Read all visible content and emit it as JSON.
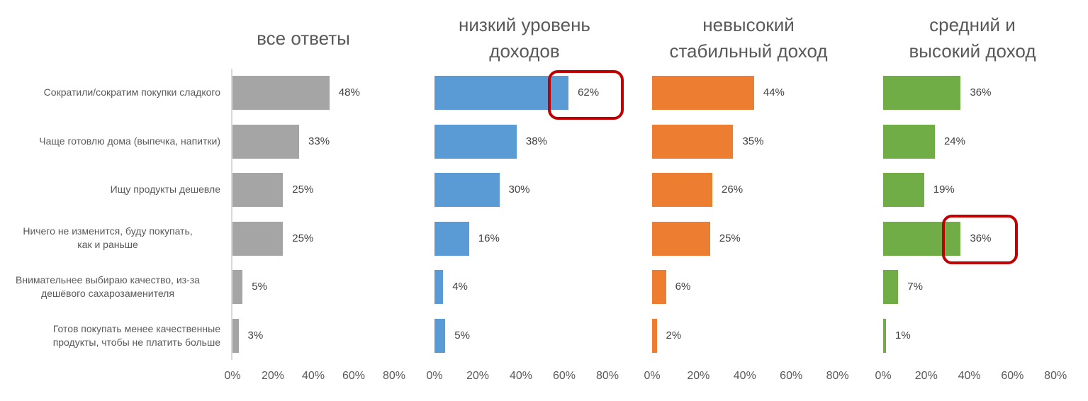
{
  "categories": [
    [
      "Сократили/сократим покупки сладкого"
    ],
    [
      "Чаще готовлю дома (выпечка, напитки)"
    ],
    [
      "Ищу продукты дешевле"
    ],
    [
      "Ничего не изменится, буду покупать,",
      "как и раньше"
    ],
    [
      "Внимательнее выбираю качество, из-за",
      "дешёвого сахарозаменителя"
    ],
    [
      "Готов покупать менее качественные",
      "продукты, чтобы не платить больше"
    ]
  ],
  "panels": [
    {
      "title": [
        "все ответы"
      ],
      "color": "#a5a5a5",
      "labels": [
        "48%",
        "33%",
        "25%",
        "25%",
        "5%",
        "3%"
      ]
    },
    {
      "title": [
        "низкий уровень",
        "доходов"
      ],
      "color": "#5b9bd5",
      "labels": [
        "62%",
        "38%",
        "30%",
        "16%",
        "4%",
        "5%"
      ]
    },
    {
      "title": [
        "невысокий",
        "стабильный доход"
      ],
      "color": "#ed7d31",
      "labels": [
        "44%",
        "35%",
        "26%",
        "25%",
        "6%",
        "2%"
      ]
    },
    {
      "title": [
        "средний и",
        "высокий доход"
      ],
      "color": "#70ad47",
      "labels": [
        "36%",
        "24%",
        "19%",
        "36%",
        "7%",
        "1%"
      ]
    }
  ],
  "x_ticks": [
    "0%",
    "20%",
    "40%",
    "60%",
    "80%"
  ],
  "highlight_color": "#c00000",
  "chart_data": [
    {
      "type": "bar",
      "orientation": "horizontal",
      "title": "все ответы",
      "categories": [
        "Сократили/сократим покупки сладкого",
        "Чаще готовлю дома (выпечка, напитки)",
        "Ищу продукты дешевле",
        "Ничего не изменится, буду покупать, как и раньше",
        "Внимательнее выбираю качество, из-за дешёвого сахарозаменителя",
        "Готов покупать менее качественные продукты, чтобы не платить больше"
      ],
      "values": [
        48,
        33,
        25,
        25,
        5,
        3
      ],
      "xlabel": "",
      "ylabel": "",
      "xlim": [
        0,
        80
      ],
      "x_ticks": [
        "0%",
        "20%",
        "40%",
        "60%",
        "80%"
      ],
      "color": "#a5a5a5",
      "grid": false
    },
    {
      "type": "bar",
      "orientation": "horizontal",
      "title": "низкий уровень доходов",
      "categories": [
        "Сократили/сократим покупки сладкого",
        "Чаще готовлю дома (выпечка, напитки)",
        "Ищу продукты дешевле",
        "Ничего не изменится, буду покупать, как и раньше",
        "Внимательнее выбираю качество, из-за дешёвого сахарозаменителя",
        "Готов покупать менее качественные продукты, чтобы не платить больше"
      ],
      "values": [
        62,
        38,
        30,
        16,
        4,
        5
      ],
      "xlim": [
        0,
        80
      ],
      "x_ticks": [
        "0%",
        "20%",
        "40%",
        "60%",
        "80%"
      ],
      "color": "#5b9bd5",
      "grid": false,
      "annotations": [
        {
          "type": "highlight-box",
          "category_index": 0,
          "value": "62%"
        }
      ]
    },
    {
      "type": "bar",
      "orientation": "horizontal",
      "title": "невысокий стабильный доход",
      "categories": [
        "Сократили/сократим покупки сладкого",
        "Чаще готовлю дома (выпечка, напитки)",
        "Ищу продукты дешевле",
        "Ничего не изменится, буду покупать, как и раньше",
        "Внимательнее выбираю качество, из-за дешёвого сахарозаменителя",
        "Готов покупать менее качественные продукты, чтобы не платить больше"
      ],
      "values": [
        44,
        35,
        26,
        25,
        6,
        2
      ],
      "xlim": [
        0,
        80
      ],
      "x_ticks": [
        "0%",
        "20%",
        "40%",
        "60%",
        "80%"
      ],
      "color": "#ed7d31",
      "grid": false
    },
    {
      "type": "bar",
      "orientation": "horizontal",
      "title": "средний и высокий доход",
      "categories": [
        "Сократили/сократим покупки сладкого",
        "Чаще готовлю дома (выпечка, напитки)",
        "Ищу продукты дешевле",
        "Ничего не изменится, буду покупать, как и раньше",
        "Внимательнее выбираю качество, из-за дешёвого сахарозаменителя",
        "Готов покупать менее качественные продукты, чтобы не платить больше"
      ],
      "values": [
        36,
        24,
        19,
        36,
        7,
        1
      ],
      "xlim": [
        0,
        80
      ],
      "x_ticks": [
        "0%",
        "20%",
        "40%",
        "60%",
        "80%"
      ],
      "color": "#70ad47",
      "grid": false,
      "annotations": [
        {
          "type": "highlight-box",
          "category_index": 3,
          "value": "36%"
        }
      ]
    }
  ]
}
